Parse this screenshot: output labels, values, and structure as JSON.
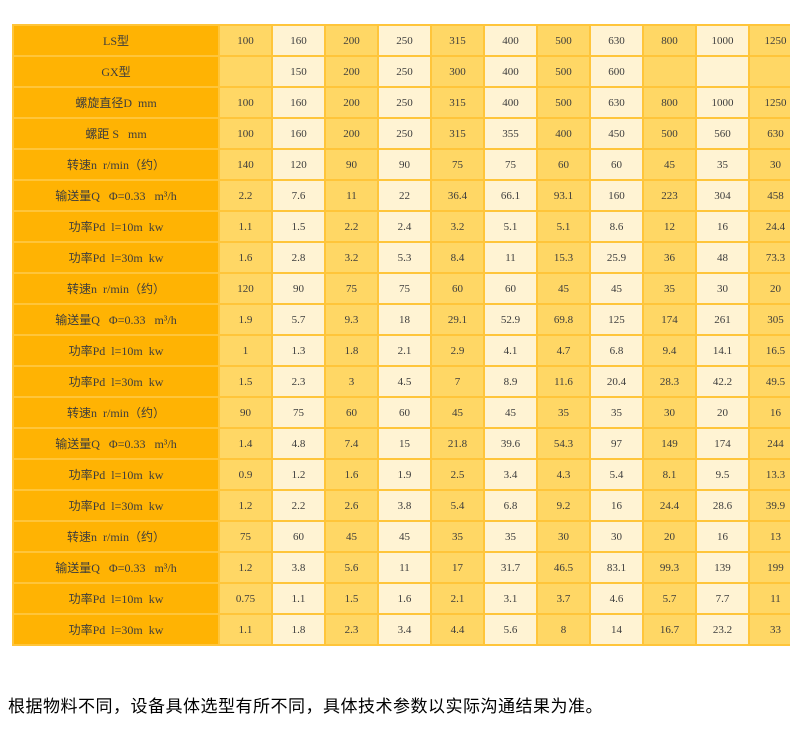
{
  "colors": {
    "label_bg": "#ffb303",
    "col_dark": "#ffd765",
    "col_light": "#fff3d3",
    "grid": "#ffc53a",
    "cell_text": "#3d3d3d",
    "note_text": "#000000"
  },
  "note": "根据物料不同，设备具体选型有所不同，具体技术参数以实际沟通结果为准。",
  "table": {
    "rows": [
      {
        "label": "LS型",
        "values": [
          "100",
          "160",
          "200",
          "250",
          "315",
          "400",
          "500",
          "630",
          "800",
          "1000",
          "1250"
        ]
      },
      {
        "label": "GX型",
        "values": [
          "",
          "150",
          "200",
          "250",
          "300",
          "400",
          "500",
          "600",
          "",
          "",
          ""
        ]
      },
      {
        "label": "螺旋直径D  mm",
        "values": [
          "100",
          "160",
          "200",
          "250",
          "315",
          "400",
          "500",
          "630",
          "800",
          "1000",
          "1250"
        ]
      },
      {
        "label": "螺距 S   mm",
        "values": [
          "100",
          "160",
          "200",
          "250",
          "315",
          "355",
          "400",
          "450",
          "500",
          "560",
          "630"
        ]
      },
      {
        "label": "转速n  r/min（约）",
        "values": [
          "140",
          "120",
          "90",
          "90",
          "75",
          "75",
          "60",
          "60",
          "45",
          "35",
          "30"
        ]
      },
      {
        "label": "输送量Q   Φ=0.33   m³/h",
        "values": [
          "2.2",
          "7.6",
          "11",
          "22",
          "36.4",
          "66.1",
          "93.1",
          "160",
          "223",
          "304",
          "458"
        ]
      },
      {
        "label": "功率Pd  l=10m  kw",
        "values": [
          "1.1",
          "1.5",
          "2.2",
          "2.4",
          "3.2",
          "5.1",
          "5.1",
          "8.6",
          "12",
          "16",
          "24.4"
        ]
      },
      {
        "label": "功率Pd  l=30m  kw",
        "values": [
          "1.6",
          "2.8",
          "3.2",
          "5.3",
          "8.4",
          "11",
          "15.3",
          "25.9",
          "36",
          "48",
          "73.3"
        ]
      },
      {
        "label": "转速n  r/min（约）",
        "values": [
          "120",
          "90",
          "75",
          "75",
          "60",
          "60",
          "45",
          "45",
          "35",
          "30",
          "20"
        ]
      },
      {
        "label": "输送量Q   Φ=0.33   m³/h",
        "values": [
          "1.9",
          "5.7",
          "9.3",
          "18",
          "29.1",
          "52.9",
          "69.8",
          "125",
          "174",
          "261",
          "305"
        ]
      },
      {
        "label": "功率Pd  l=10m  kw",
        "values": [
          "1",
          "1.3",
          "1.8",
          "2.1",
          "2.9",
          "4.1",
          "4.7",
          "6.8",
          "9.4",
          "14.1",
          "16.5"
        ]
      },
      {
        "label": "功率Pd  l=30m  kw",
        "values": [
          "1.5",
          "2.3",
          "3",
          "4.5",
          "7",
          "8.9",
          "11.6",
          "20.4",
          "28.3",
          "42.2",
          "49.5"
        ]
      },
      {
        "label": "转速n  r/min（约）",
        "values": [
          "90",
          "75",
          "60",
          "60",
          "45",
          "45",
          "35",
          "35",
          "30",
          "20",
          "16"
        ]
      },
      {
        "label": "输送量Q   Φ=0.33   m³/h",
        "values": [
          "1.4",
          "4.8",
          "7.4",
          "15",
          "21.8",
          "39.6",
          "54.3",
          "97",
          "149",
          "174",
          "244"
        ]
      },
      {
        "label": "功率Pd  l=10m  kw",
        "values": [
          "0.9",
          "1.2",
          "1.6",
          "1.9",
          "2.5",
          "3.4",
          "4.3",
          "5.4",
          "8.1",
          "9.5",
          "13.3"
        ]
      },
      {
        "label": "功率Pd  l=30m  kw",
        "values": [
          "1.2",
          "2.2",
          "2.6",
          "3.8",
          "5.4",
          "6.8",
          "9.2",
          "16",
          "24.4",
          "28.6",
          "39.9"
        ]
      },
      {
        "label": "转速n  r/min（约）",
        "values": [
          "75",
          "60",
          "45",
          "45",
          "35",
          "35",
          "30",
          "30",
          "20",
          "16",
          "13"
        ]
      },
      {
        "label": "输送量Q   Φ=0.33   m³/h",
        "values": [
          "1.2",
          "3.8",
          "5.6",
          "11",
          "17",
          "31.7",
          "46.5",
          "83.1",
          "99.3",
          "139",
          "199"
        ]
      },
      {
        "label": "功率Pd  l=10m  kw",
        "values": [
          "0.75",
          "1.1",
          "1.5",
          "1.6",
          "2.1",
          "3.1",
          "3.7",
          "4.6",
          "5.7",
          "7.7",
          "11"
        ]
      },
      {
        "label": "功率Pd  l=30m  kw",
        "values": [
          "1.1",
          "1.8",
          "2.3",
          "3.4",
          "4.4",
          "5.6",
          "8",
          "14",
          "16.7",
          "23.2",
          "33"
        ]
      }
    ]
  }
}
